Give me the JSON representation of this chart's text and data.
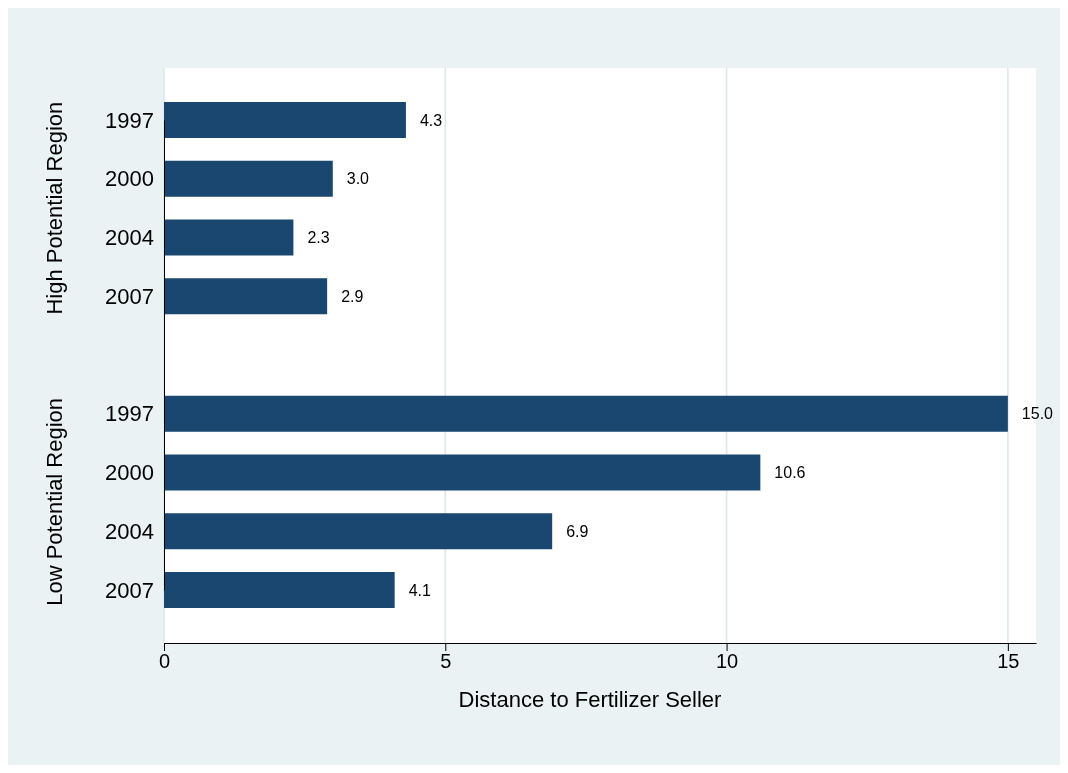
{
  "chart_data": {
    "type": "bar",
    "orientation": "horizontal",
    "xlabel": "Distance to Fertilizer Seller",
    "categories": [
      "1997",
      "2000",
      "2004",
      "2007",
      null,
      "1997",
      "2000",
      "2004",
      "2007"
    ],
    "values": [
      4.3,
      3.0,
      2.3,
      2.9,
      null,
      15.0,
      10.6,
      6.9,
      4.1
    ],
    "color": "#1a476f",
    "value_labels": [
      "4.3",
      "3.0",
      "2.3",
      "2.9",
      null,
      "15.0",
      "10.6",
      "6.9",
      "4.1"
    ],
    "xlim": [
      0,
      15.5
    ],
    "xticks": [
      0,
      5,
      10,
      15
    ],
    "grid": "x",
    "annotations": [
      "High Potential Region",
      "Low Potential Region"
    ]
  }
}
